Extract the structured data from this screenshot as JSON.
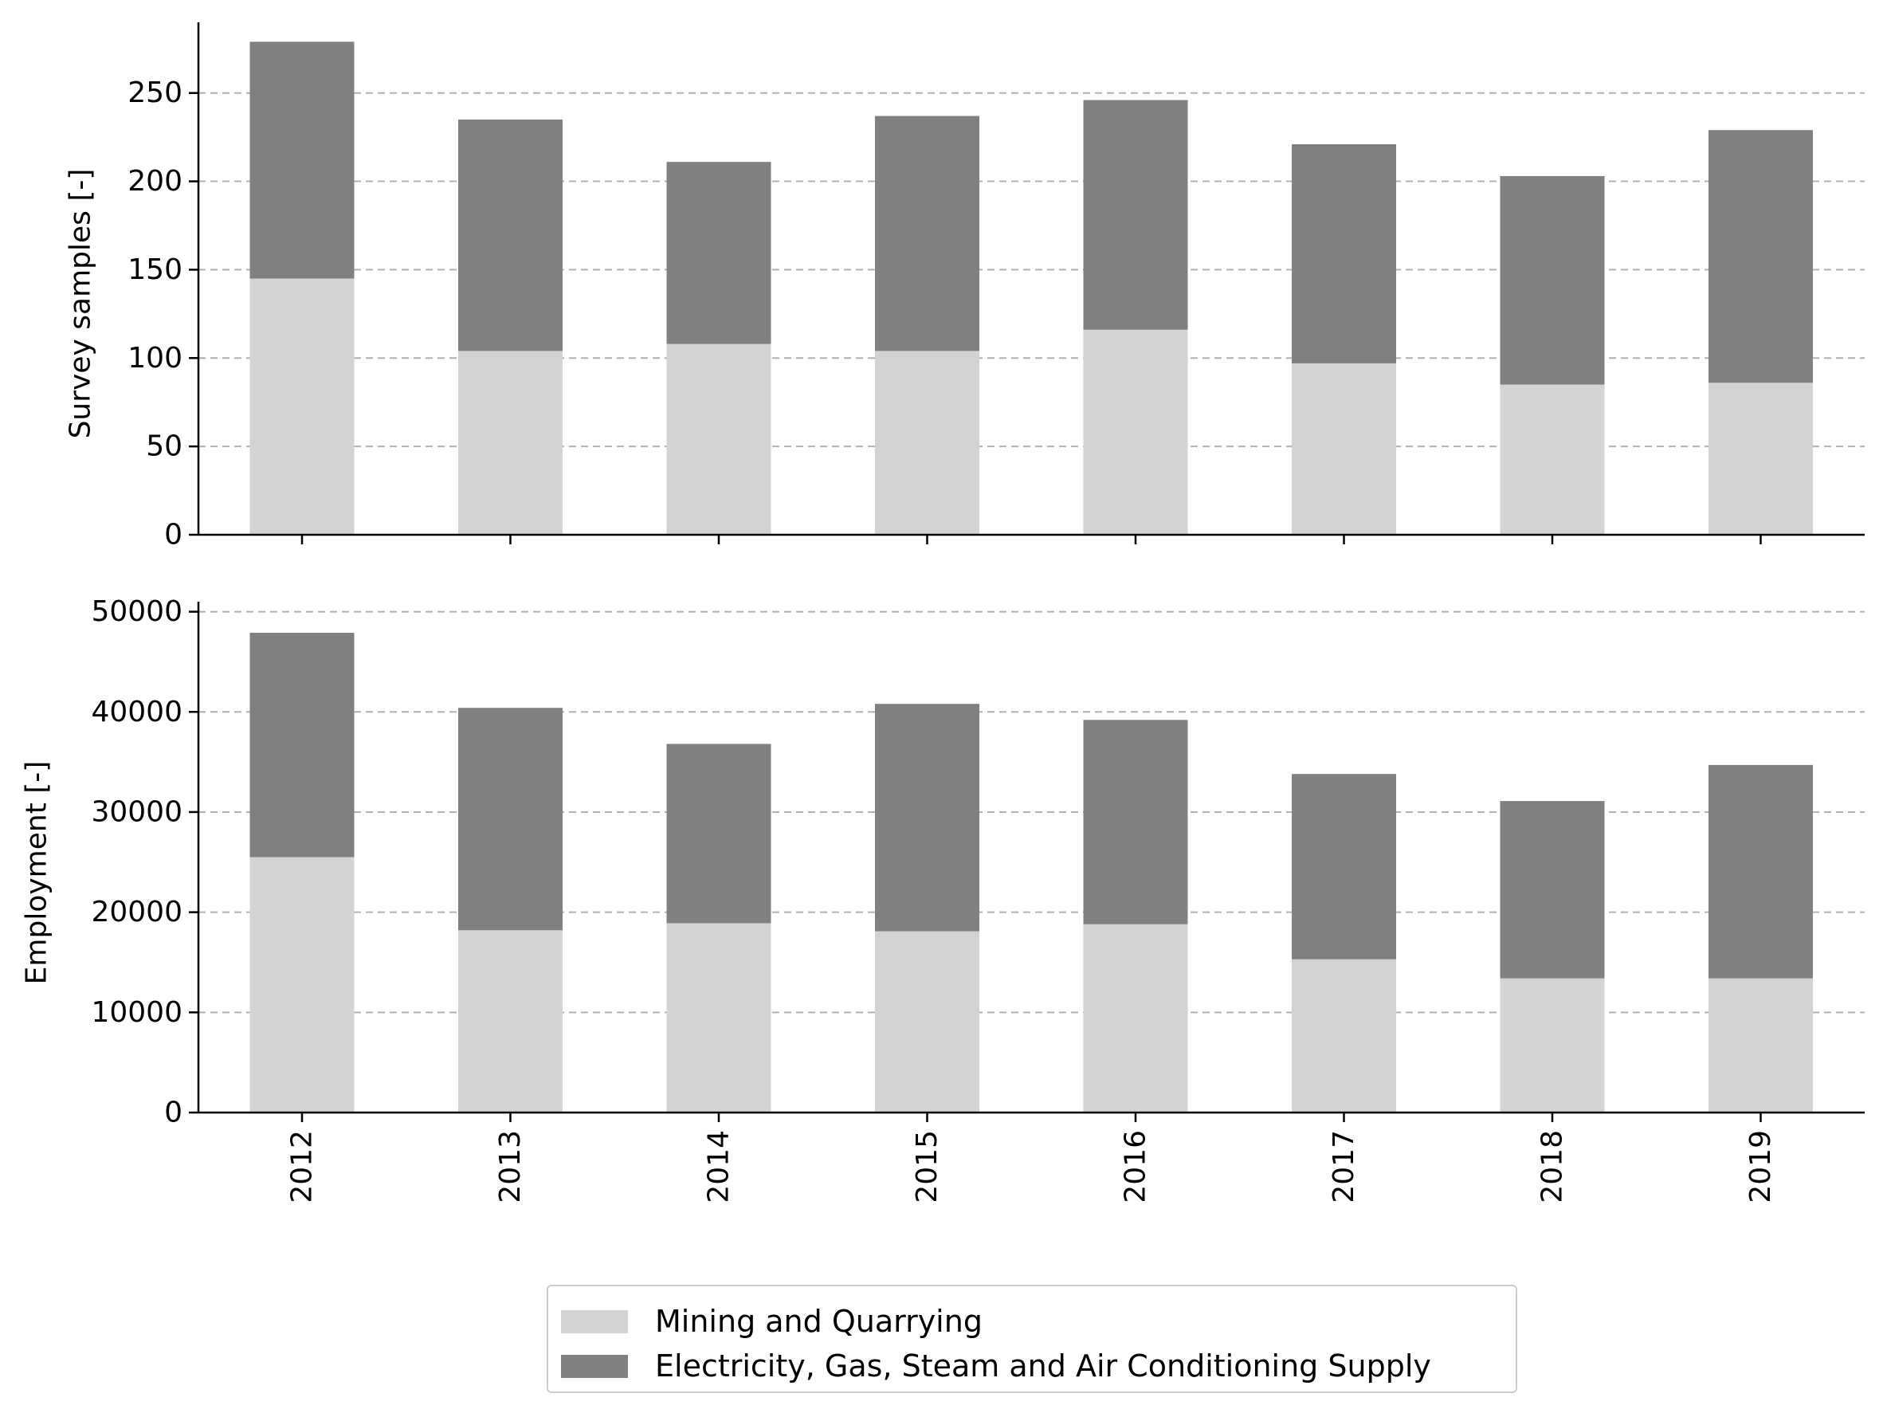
{
  "chart_data": [
    {
      "type": "bar",
      "stacked": true,
      "categories": [
        "2012",
        "2013",
        "2014",
        "2015",
        "2016",
        "2017",
        "2018",
        "2019"
      ],
      "ylabel": "Survey samples [-]",
      "xlabel": "",
      "ylim": [
        0,
        290
      ],
      "yticks": [
        0,
        50,
        100,
        150,
        200,
        250
      ],
      "grid": "horizontal dashed",
      "series": [
        {
          "name": "Mining and Quarrying",
          "color": "#d3d3d3",
          "values": [
            145,
            104,
            108,
            104,
            116,
            97,
            85,
            86
          ]
        },
        {
          "name": "Electricity, Gas, Steam and Air Conditioning Supply",
          "color": "#808080",
          "values": [
            134,
            131,
            103,
            133,
            130,
            124,
            118,
            143
          ]
        }
      ]
    },
    {
      "type": "bar",
      "stacked": true,
      "categories": [
        "2012",
        "2013",
        "2014",
        "2015",
        "2016",
        "2017",
        "2018",
        "2019"
      ],
      "ylabel": "Employment [-]",
      "xlabel": "",
      "ylim": [
        0,
        51000
      ],
      "yticks": [
        0,
        10000,
        20000,
        30000,
        40000,
        50000
      ],
      "grid": "horizontal dashed",
      "series": [
        {
          "name": "Mining and Quarrying",
          "color": "#d3d3d3",
          "values": [
            25500,
            18200,
            18900,
            18100,
            18800,
            15300,
            13400,
            13400
          ]
        },
        {
          "name": "Electricity, Gas, Steam and Air Conditioning Supply",
          "color": "#808080",
          "values": [
            22400,
            22200,
            17900,
            22700,
            20400,
            18500,
            17700,
            21300
          ]
        }
      ]
    }
  ],
  "legend": {
    "placement": "bottom-center",
    "entries": [
      {
        "label": "Mining and Quarrying",
        "color": "#d3d3d3"
      },
      {
        "label": "Electricity, Gas, Steam and Air Conditioning Supply",
        "color": "#808080"
      }
    ]
  }
}
